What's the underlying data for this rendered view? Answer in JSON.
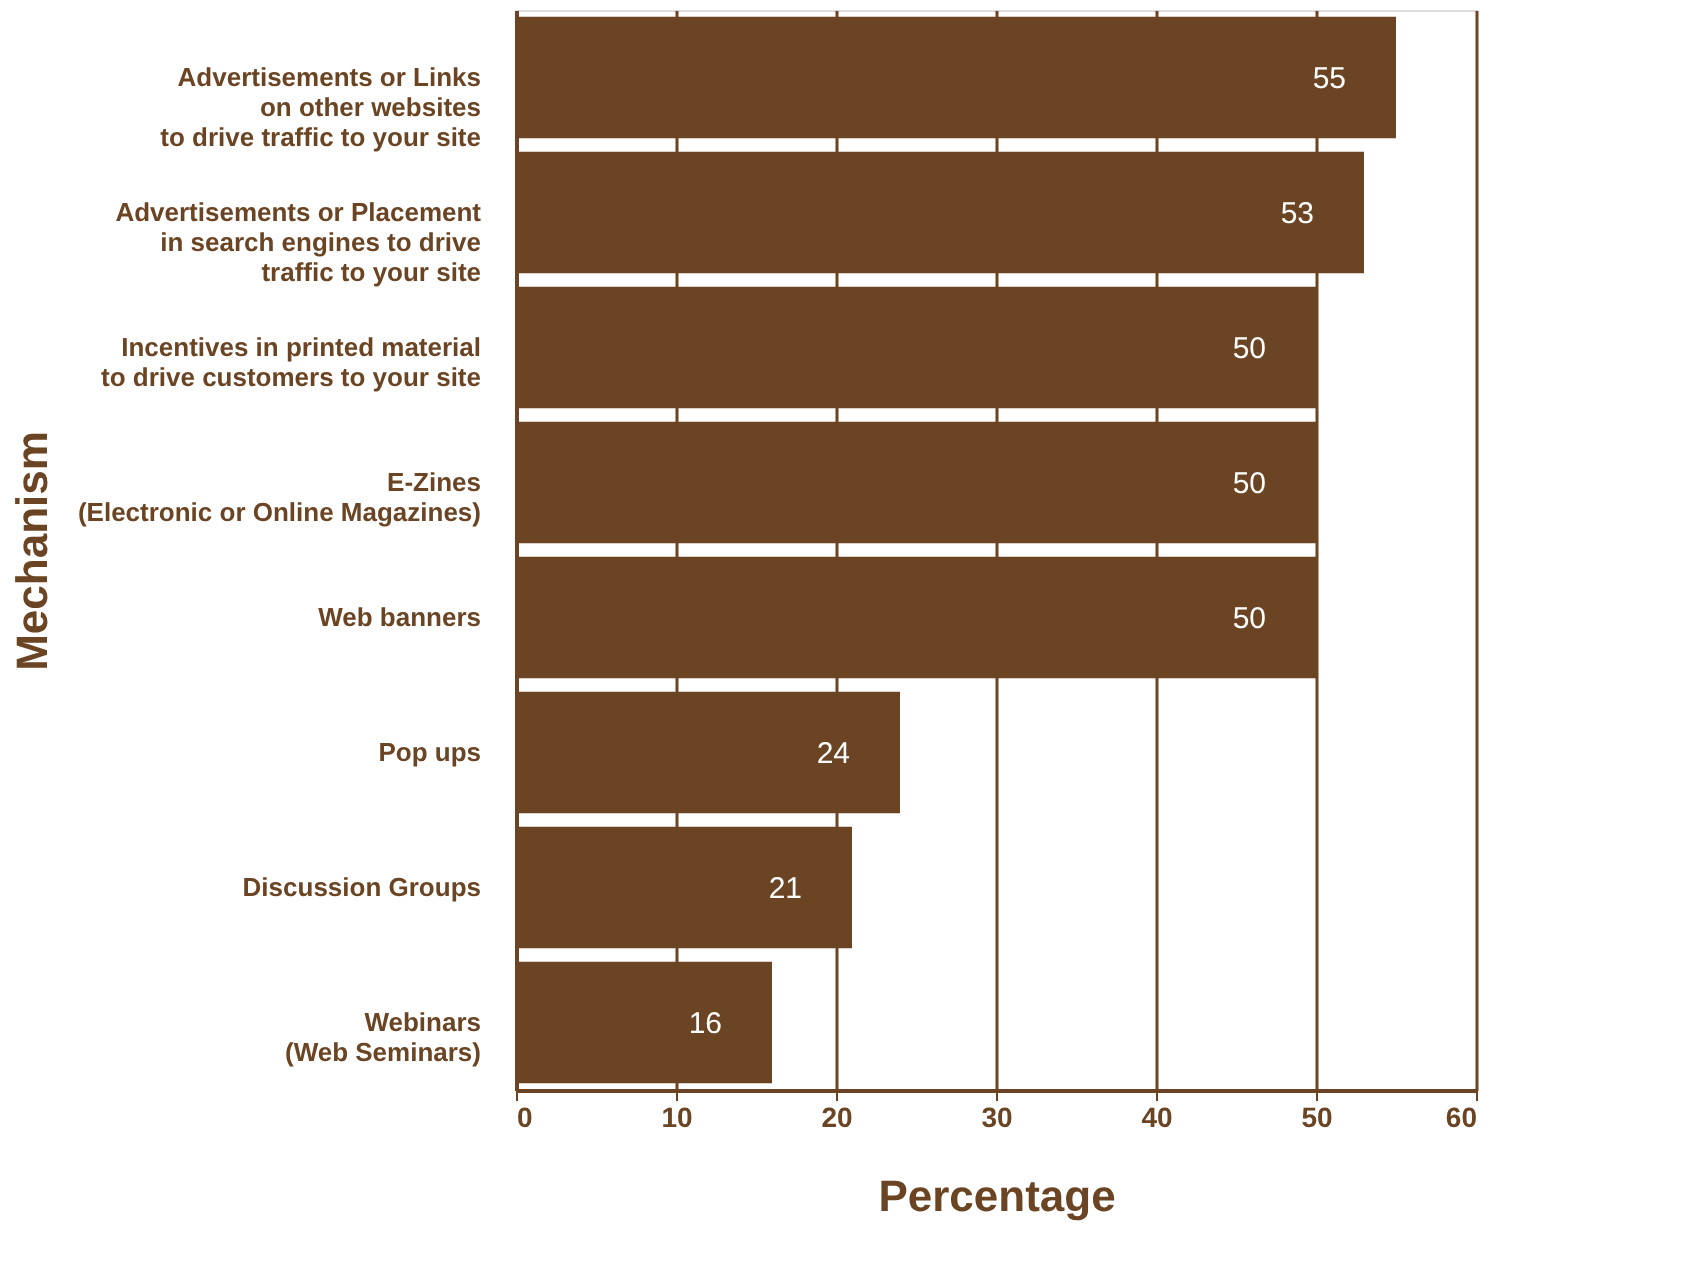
{
  "chart_data": {
    "type": "bar",
    "orientation": "horizontal",
    "xlabel": "Percentage",
    "ylabel": "Mechanism",
    "categories": [
      "Advertisements or Links\non other websites\nto drive traffic to your site",
      "Advertisements or Placement\nin search engines to drive\ntraffic to your site",
      "Incentives in printed material\nto drive customers to your site",
      "E-Zines\n(Electronic or Online Magazines)",
      "Web banners",
      "Pop ups",
      "Discussion Groups",
      "Webinars\n(Web Seminars)"
    ],
    "values": [
      55,
      53,
      50,
      50,
      50,
      24,
      21,
      16
    ],
    "color": "#6b4423",
    "data_labels": true,
    "xlim": [
      0,
      60
    ],
    "xticks": [
      0,
      10,
      20,
      30,
      40,
      50,
      60
    ],
    "grid": "x"
  }
}
